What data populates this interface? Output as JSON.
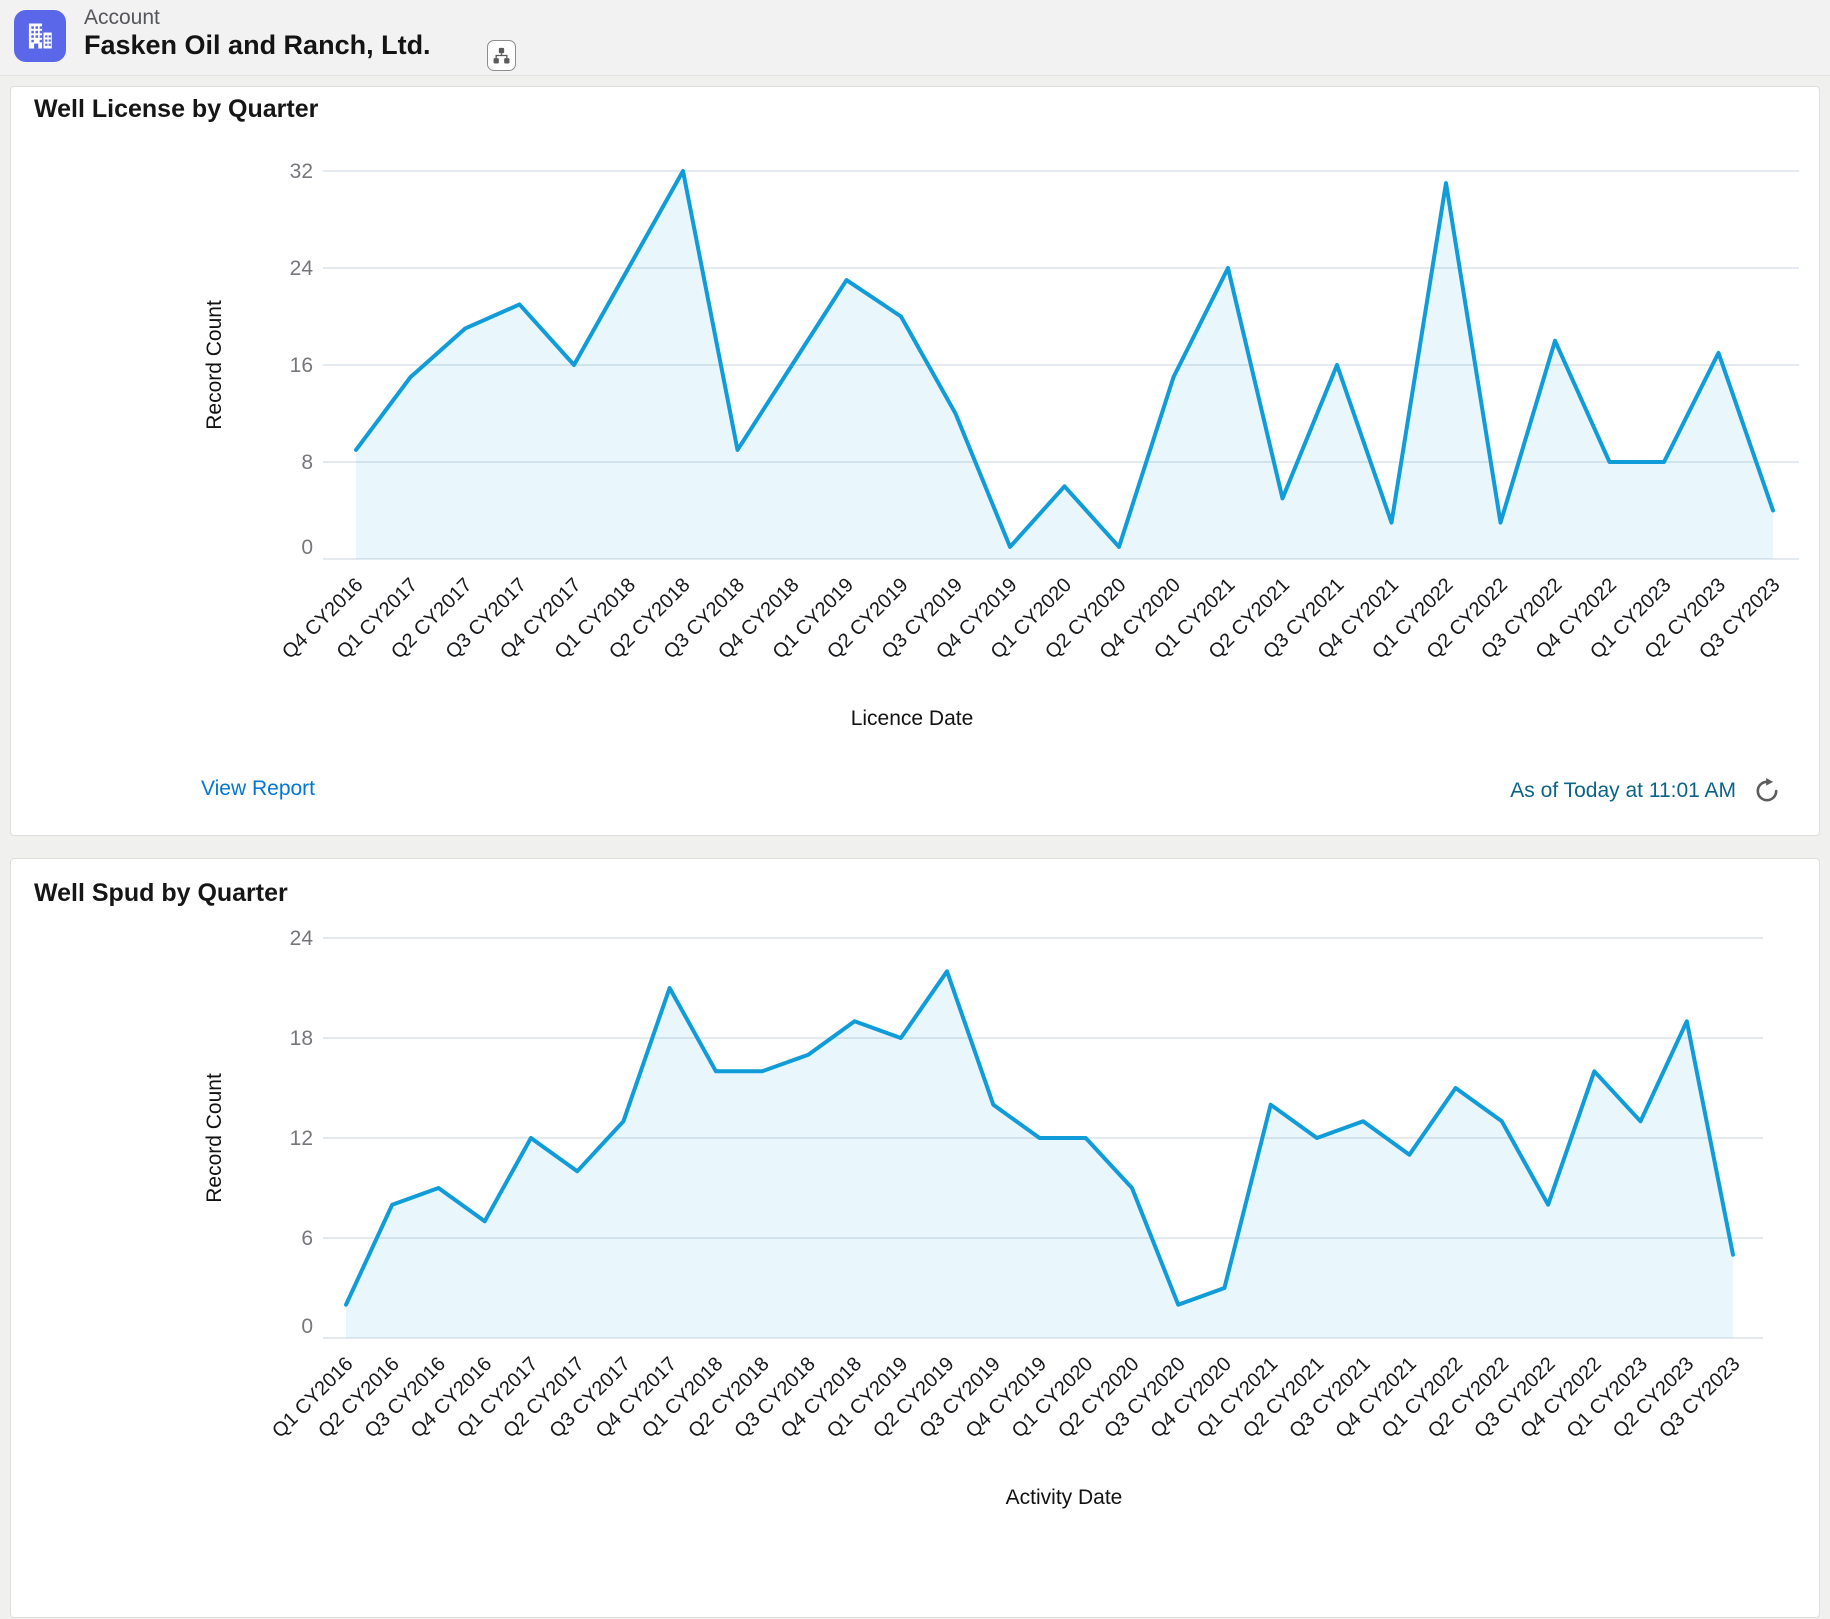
{
  "theme": {
    "line_color": "#0F9CD8",
    "area_fill": "rgba(15,156,216,0.09)",
    "grid_color": "#E4EAEF",
    "y_tick_color": "#75777C",
    "x_tick_color": "#17191C",
    "axis_title_color": "#121212",
    "accent_blue": "#0176D3",
    "as_of_color": "#0B6488",
    "entity_icon_color": "#5A67E8"
  },
  "header": {
    "entity_label": "Account",
    "title": "Fasken Oil and Ranch, Ltd.",
    "icons": {
      "entity": "account-buildings-icon",
      "hierarchy": "hierarchy-icon"
    }
  },
  "card1": {
    "view_report_label": "View Report",
    "as_of_text": "As of Today at 11:01 AM",
    "refresh_icon": "refresh-icon"
  },
  "chart_data": [
    {
      "type": "area",
      "title": "Well License by Quarter",
      "xlabel": "Licence Date",
      "ylabel": "Record Count",
      "ylim": [
        0,
        32
      ],
      "yticks": [
        0,
        8,
        16,
        24,
        32
      ],
      "grid": true,
      "legend": false,
      "categories": [
        "Q4 CY2016",
        "Q1 CY2017",
        "Q2 CY2017",
        "Q3 CY2017",
        "Q4 CY2017",
        "Q1 CY2018",
        "Q2 CY2018",
        "Q3 CY2018",
        "Q4 CY2018",
        "Q1 CY2019",
        "Q2 CY2019",
        "Q3 CY2019",
        "Q4 CY2019",
        "Q1 CY2020",
        "Q2 CY2020",
        "Q4 CY2020",
        "Q1 CY2021",
        "Q2 CY2021",
        "Q3 CY2021",
        "Q4 CY2021",
        "Q1 CY2022",
        "Q2 CY2022",
        "Q3 CY2022",
        "Q4 CY2022",
        "Q1 CY2023",
        "Q2 CY2023",
        "Q3 CY2023"
      ],
      "values": [
        9,
        15,
        19,
        21,
        16,
        24,
        32,
        9,
        16,
        23,
        20,
        12,
        1,
        6,
        1,
        15,
        24,
        5,
        16,
        3,
        31,
        3,
        18,
        8,
        8,
        17,
        4
      ]
    },
    {
      "type": "area",
      "title": "Well Spud by Quarter",
      "xlabel": "Activity Date",
      "ylabel": "Record Count",
      "ylim": [
        0,
        24
      ],
      "yticks": [
        0,
        6,
        12,
        18,
        24
      ],
      "grid": true,
      "legend": false,
      "categories": [
        "Q1 CY2016",
        "Q2 CY2016",
        "Q3 CY2016",
        "Q4 CY2016",
        "Q1 CY2017",
        "Q2 CY2017",
        "Q3 CY2017",
        "Q4 CY2017",
        "Q1 CY2018",
        "Q2 CY2018",
        "Q3 CY2018",
        "Q4 CY2018",
        "Q1 CY2019",
        "Q2 CY2019",
        "Q3 CY2019",
        "Q4 CY2019",
        "Q1 CY2020",
        "Q2 CY2020",
        "Q3 CY2020",
        "Q4 CY2020",
        "Q1 CY2021",
        "Q2 CY2021",
        "Q3 CY2021",
        "Q4 CY2021",
        "Q1 CY2022",
        "Q2 CY2022",
        "Q3 CY2022",
        "Q4 CY2022",
        "Q1 CY2023",
        "Q2 CY2023",
        "Q3 CY2023"
      ],
      "values": [
        2,
        8,
        9,
        7,
        12,
        10,
        13,
        21,
        16,
        16,
        17,
        19,
        18,
        22,
        14,
        12,
        12,
        9,
        2,
        3,
        14,
        12,
        13,
        11,
        15,
        13,
        8,
        16,
        13,
        19,
        5
      ]
    }
  ]
}
